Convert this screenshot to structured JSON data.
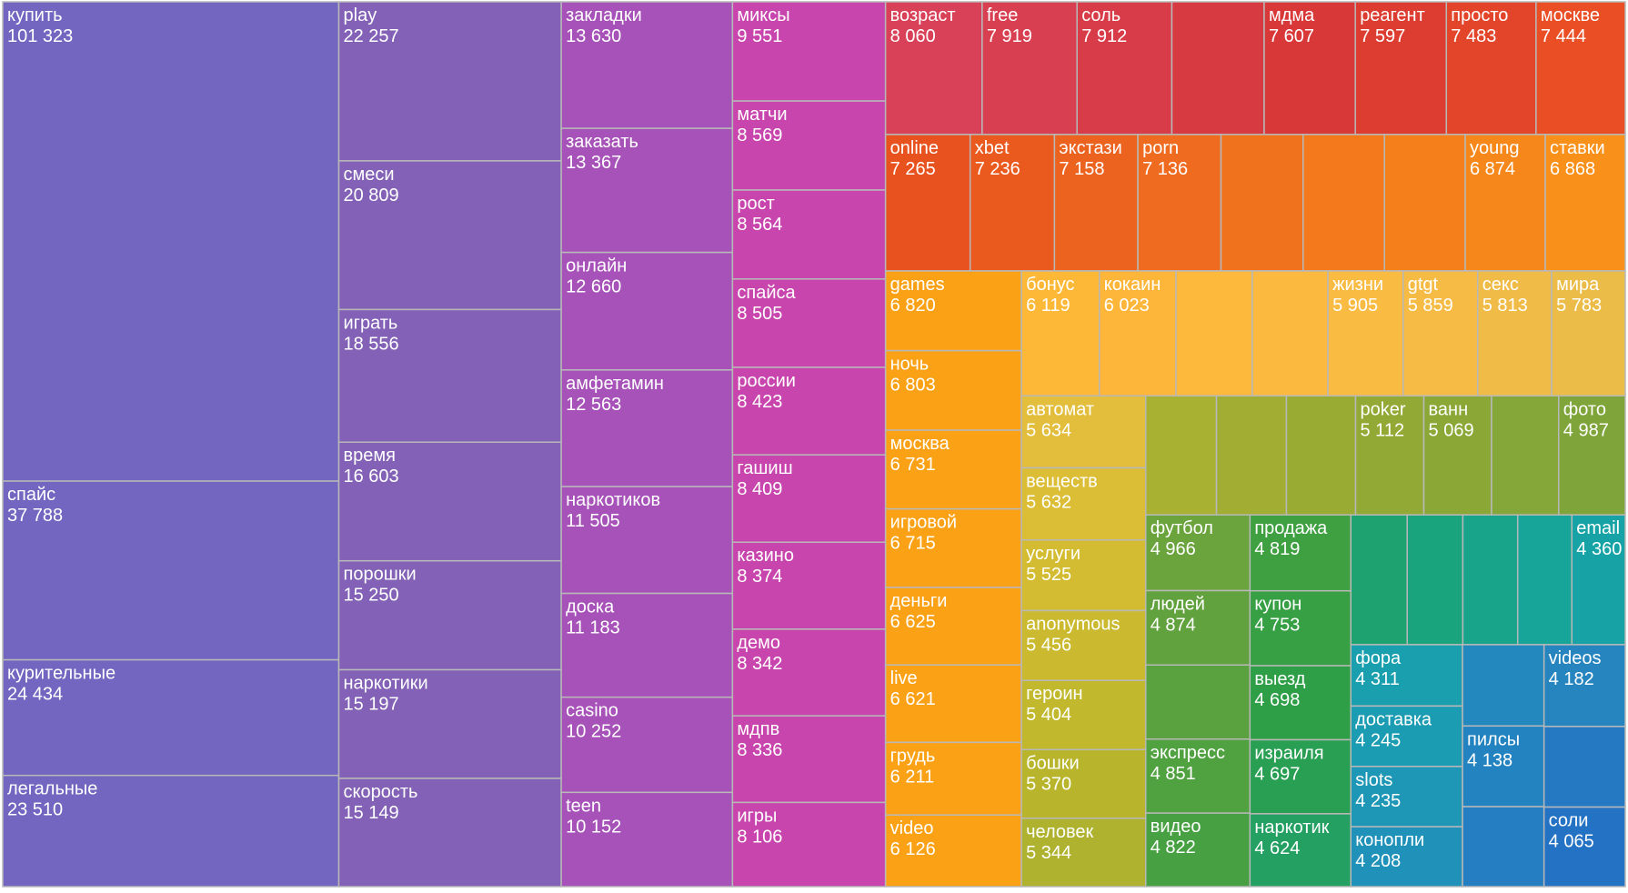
{
  "chart_data": {
    "type": "treemap",
    "title": "",
    "columns": [
      {
        "name": "column-1",
        "color": "#7266c0",
        "items": [
          {
            "label": "купить",
            "value": 101323
          },
          {
            "label": "спайс",
            "value": 37788
          },
          {
            "label": "курительные",
            "value": 24434
          },
          {
            "label": "легальные",
            "value": 23510
          }
        ]
      },
      {
        "name": "column-2",
        "color": "#8261b6",
        "items": [
          {
            "label": "play",
            "value": 22257
          },
          {
            "label": "смеси",
            "value": 20809
          },
          {
            "label": "играть",
            "value": 18556
          },
          {
            "label": "время",
            "value": 16603
          },
          {
            "label": "порошки",
            "value": 15250
          },
          {
            "label": "наркотики",
            "value": 15197
          },
          {
            "label": "скорость",
            "value": 15149
          }
        ]
      },
      {
        "name": "column-3",
        "color": "#a752b8",
        "items": [
          {
            "label": "закладки",
            "value": 13630
          },
          {
            "label": "заказать",
            "value": 13367
          },
          {
            "label": "онлайн",
            "value": 12660
          },
          {
            "label": "амфетамин",
            "value": 12563
          },
          {
            "label": "наркотиков",
            "value": 11505
          },
          {
            "label": "доска",
            "value": 11183
          },
          {
            "label": "casino",
            "value": 10252
          },
          {
            "label": "teen",
            "value": 10152
          }
        ]
      },
      {
        "name": "column-4",
        "color": "#c845ad",
        "items": [
          {
            "label": "миксы",
            "value": 9551
          },
          {
            "label": "матчи",
            "value": 8569
          },
          {
            "label": "рост",
            "value": 8564
          },
          {
            "label": "спайса",
            "value": 8505
          },
          {
            "label": "россии",
            "value": 8423
          },
          {
            "label": "гашиш",
            "value": 8409
          },
          {
            "label": "казино",
            "value": 8374
          },
          {
            "label": "демо",
            "value": 8342
          },
          {
            "label": "мдпв",
            "value": 8336
          },
          {
            "label": "игры",
            "value": 8106
          }
        ]
      }
    ],
    "rows": [
      {
        "name": "row-1",
        "items": [
          {
            "label": "возраст",
            "value": 8060,
            "color": "#d84158"
          },
          {
            "label": "free",
            "value": 7919,
            "color": "#d83f50"
          },
          {
            "label": "соль",
            "value": 7912,
            "color": "#d73c48"
          },
          {
            "label": "",
            "value": 7700,
            "color": "#d73a40"
          },
          {
            "label": "мдма",
            "value": 7607,
            "color": "#d83838"
          },
          {
            "label": "реагент",
            "value": 7597,
            "color": "#dc3d30"
          },
          {
            "label": "просто",
            "value": 7483,
            "color": "#e3452b"
          },
          {
            "label": "москве",
            "value": 7444,
            "color": "#e94e25"
          }
        ]
      },
      {
        "name": "row-2",
        "items": [
          {
            "label": "online",
            "value": 7265,
            "color": "#e8521f"
          },
          {
            "label": "xbet",
            "value": 7236,
            "color": "#ea5a1f"
          },
          {
            "label": "экстази",
            "value": 7158,
            "color": "#ec621f"
          },
          {
            "label": "porn",
            "value": 7136,
            "color": "#ef6b1f"
          },
          {
            "label": "",
            "value": 7050,
            "color": "#f1721d"
          },
          {
            "label": "",
            "value": 6980,
            "color": "#f3791c"
          },
          {
            "label": "",
            "value": 6930,
            "color": "#f5801b"
          },
          {
            "label": "young",
            "value": 6874,
            "color": "#f6881b"
          },
          {
            "label": "ставки",
            "value": 6868,
            "color": "#f8901a"
          }
        ]
      }
    ],
    "orange_column": {
      "color": "#fba115",
      "items": [
        {
          "label": "games",
          "value": 6820
        },
        {
          "label": "ночь",
          "value": 6803
        },
        {
          "label": "москва",
          "value": 6731
        },
        {
          "label": "игровой",
          "value": 6715
        },
        {
          "label": "деньги",
          "value": 6625
        },
        {
          "label": "live",
          "value": 6621
        },
        {
          "label": "грудь",
          "value": 6211
        },
        {
          "label": "video",
          "value": 6126
        }
      ]
    },
    "yellow_row": {
      "items": [
        {
          "label": "бонус",
          "value": 6119,
          "color": "#fdb838"
        },
        {
          "label": "кокаин",
          "value": 6023,
          "color": "#fdb63a"
        },
        {
          "label": "",
          "value": 5990,
          "color": "#fcb93c"
        },
        {
          "label": "",
          "value": 5950,
          "color": "#fbba3f"
        },
        {
          "label": "жизни",
          "value": 5905,
          "color": "#f9bb42"
        },
        {
          "label": "gtgt",
          "value": 5859,
          "color": "#f5bb44"
        },
        {
          "label": "секс",
          "value": 5813,
          "color": "#f0bb46"
        },
        {
          "label": "мира",
          "value": 5783,
          "color": "#ebbc47"
        }
      ]
    },
    "olive_column": {
      "color": "#dcbf3a",
      "items": [
        {
          "label": "автомат",
          "value": 5634,
          "color": "#e3be3c"
        },
        {
          "label": "веществ",
          "value": 5632,
          "color": "#dcbd36"
        },
        {
          "label": "услуги",
          "value": 5525,
          "color": "#d4bc32"
        },
        {
          "label": "anonymous",
          "value": 5456,
          "color": "#cbba2f"
        },
        {
          "label": "героин",
          "value": 5404,
          "color": "#c1b82d"
        },
        {
          "label": "бошки",
          "value": 5370,
          "color": "#b8b52d"
        },
        {
          "label": "человек",
          "value": 5344,
          "color": "#aeb22f"
        }
      ]
    },
    "green_row": {
      "items": [
        {
          "label": "",
          "value": 5300,
          "color": "#a8b132"
        },
        {
          "label": "",
          "value": 5240,
          "color": "#a1ae33"
        },
        {
          "label": "",
          "value": 5180,
          "color": "#9aab34"
        },
        {
          "label": "poker",
          "value": 5112,
          "color": "#93a935"
        },
        {
          "label": "ванн",
          "value": 5069,
          "color": "#8ba736"
        },
        {
          "label": "",
          "value": 5030,
          "color": "#85a638"
        },
        {
          "label": "фото",
          "value": 4987,
          "color": "#7ea43a"
        }
      ]
    },
    "green_columns": [
      {
        "name": "green-col-1",
        "items": [
          {
            "label": "футбол",
            "value": 4966,
            "color": "#6ba33d"
          },
          {
            "label": "людей",
            "value": 4874,
            "color": "#62a23e"
          },
          {
            "label": "",
            "value": 4860,
            "color": "#5aa23f"
          },
          {
            "label": "экспресс",
            "value": 4851,
            "color": "#50a140"
          },
          {
            "label": "видео",
            "value": 4822,
            "color": "#47a041"
          }
        ]
      },
      {
        "name": "green-col-2",
        "items": [
          {
            "label": "продажа",
            "value": 4819,
            "color": "#3fa042"
          },
          {
            "label": "купон",
            "value": 4753,
            "color": "#379f44"
          },
          {
            "label": "выезд",
            "value": 4698,
            "color": "#2e9e47"
          },
          {
            "label": "израиля",
            "value": 4697,
            "color": "#299f53"
          },
          {
            "label": "наркотик",
            "value": 4624,
            "color": "#23a062"
          }
        ]
      }
    ],
    "teal_row": {
      "items": [
        {
          "label": "",
          "value": 4600,
          "color": "#1ea370"
        },
        {
          "label": "",
          "value": 4540,
          "color": "#1aa47d"
        },
        {
          "label": "",
          "value": 4480,
          "color": "#17a48b"
        },
        {
          "label": "",
          "value": 4420,
          "color": "#17a499"
        },
        {
          "label": "email",
          "value": 4360,
          "color": "#17a3a6"
        }
      ]
    },
    "blue_columns": [
      {
        "name": "blue-col-1",
        "items": [
          {
            "label": "фора",
            "value": 4311,
            "color": "#1a9fae"
          },
          {
            "label": "доставка",
            "value": 4245,
            "color": "#1c9cb2"
          },
          {
            "label": "slots",
            "value": 4235,
            "color": "#1e97b6"
          },
          {
            "label": "конопли",
            "value": 4208,
            "color": "#2092ba"
          }
        ]
      },
      {
        "name": "blue-col-2",
        "items": [
          {
            "label": "",
            "value": 4170,
            "color": "#2288bd"
          },
          {
            "label": "пилсы",
            "value": 4138,
            "color": "#2383c0"
          },
          {
            "label": "",
            "value": 4100,
            "color": "#257dc2"
          }
        ]
      },
      {
        "name": "blue-col-3",
        "items": [
          {
            "label": "videos",
            "value": 4182,
            "color": "#2685bf"
          },
          {
            "label": "",
            "value": 4120,
            "color": "#2578c2"
          },
          {
            "label": "соли",
            "value": 4065,
            "color": "#2472c4"
          }
        ]
      }
    ]
  }
}
